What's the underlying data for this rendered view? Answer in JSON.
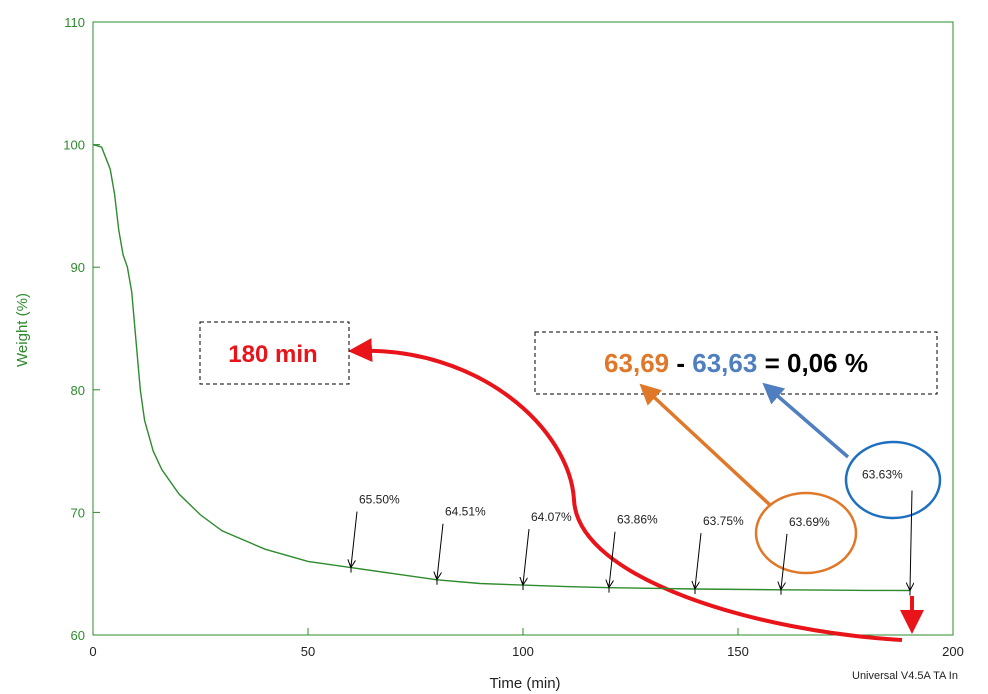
{
  "chart_data": {
    "type": "line",
    "x_label": "Time (min)",
    "y_label": "Weight (%)",
    "x": [
      0,
      2,
      4,
      5,
      6,
      7,
      8,
      9,
      10,
      11,
      12,
      14,
      16,
      20,
      25,
      30,
      40,
      50,
      60,
      70,
      80,
      90,
      100,
      110,
      120,
      140,
      160,
      170,
      180,
      190
    ],
    "series": [
      {
        "color": "#2e8b2e",
        "values": [
          100,
          99.8,
          98,
          96,
          93,
          91,
          90,
          88,
          84,
          80,
          77.5,
          75,
          73.5,
          71.5,
          69.8,
          68.5,
          67,
          66,
          65.5,
          65,
          64.5,
          64.2,
          64.07,
          63.95,
          63.86,
          63.75,
          63.69,
          63.66,
          63.64,
          63.63
        ]
      }
    ],
    "xlim": [
      0,
      200
    ],
    "xticks": [
      0,
      50,
      100,
      150,
      200
    ],
    "ylim": [
      60,
      110
    ],
    "yticks": [
      60,
      70,
      80,
      90,
      100,
      110
    ],
    "annotations": [
      {
        "x": 60,
        "value": 65.5,
        "label": "65.50%"
      },
      {
        "x": 80,
        "value": 64.51,
        "label": "64.51%"
      },
      {
        "x": 100,
        "value": 64.07,
        "label": "64.07%"
      },
      {
        "x": 120,
        "value": 63.86,
        "label": "63.86%"
      },
      {
        "x": 140,
        "value": 63.75,
        "label": "63.75%"
      },
      {
        "x": 160,
        "value": 63.69,
        "label": "63.69%"
      },
      {
        "x": 190,
        "value": 63.63,
        "label": "63.63%"
      }
    ],
    "time_note": "180 min",
    "equation": {
      "first": "63,69",
      "minus": "-",
      "second": "63,63",
      "result": "= 0,06 %"
    },
    "footer": "Universal V4.5A TA In"
  }
}
